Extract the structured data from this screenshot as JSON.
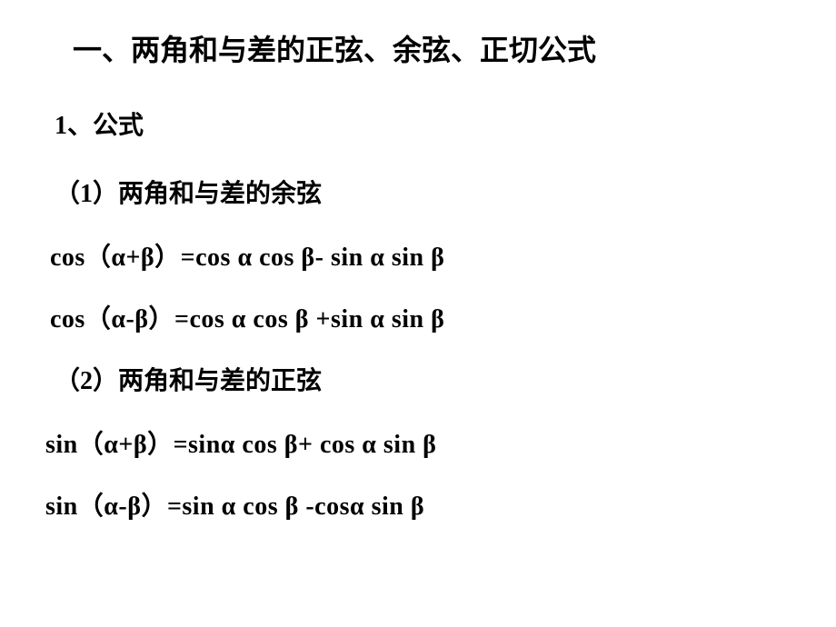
{
  "title": "一、两角和与差的正弦、余弦、正切公式",
  "section1": {
    "label": "1、公式",
    "sub1": {
      "label": "（1）两角和与差的余弦",
      "formula1": "cos（α+β）=cos α cos β- sin α sin β",
      "formula2": "cos（α-β）=cos α cos β +sin α sin β"
    },
    "sub2": {
      "label": "（2）两角和与差的正弦",
      "formula1": "sin（α+β）=sinα cos β+ cos α sin β",
      "formula2": "sin（α-β）=sin α cos β -cosα sin β"
    }
  },
  "styles": {
    "background_color": "#ffffff",
    "text_color": "#000000",
    "title_fontsize": 32,
    "section_fontsize": 28,
    "formula_fontsize": 28,
    "font_weight": "bold",
    "font_family_cjk": "SimSun",
    "font_family_latin": "Times New Roman"
  }
}
